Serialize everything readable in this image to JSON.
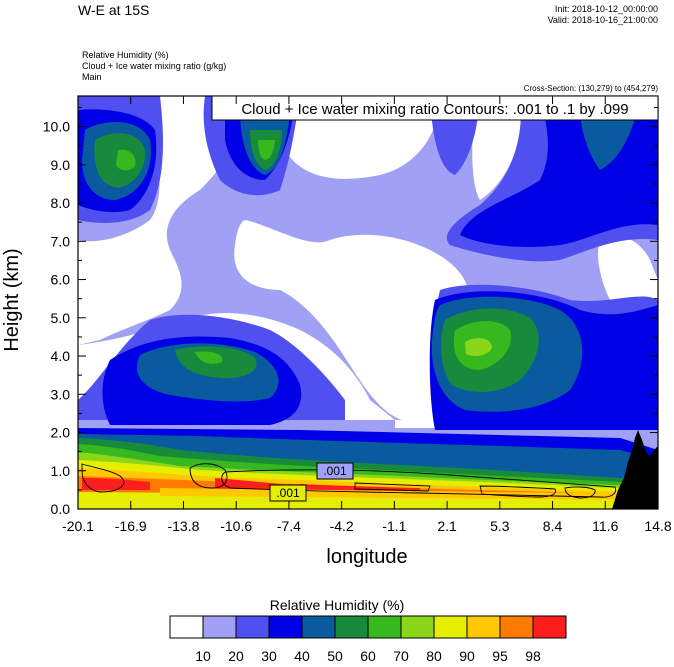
{
  "header": {
    "title": "W-E at 15S",
    "init": "Init: 2018-10-12_00:00:00",
    "valid": "Valid: 2018-10-16_21:00:00",
    "fields": [
      "Relative Humidity   (%)",
      "Cloud + Ice water mixing ratio   (g/kg)",
      "Main"
    ],
    "cross_section": "Cross-Section: (130,279) to (454,279)"
  },
  "chart_data": {
    "type": "heatmap",
    "title": "Cloud + Ice water mixing ratio Contours: .001 to .1 by .099",
    "xlabel": "longitude",
    "ylabel": "Height (km)",
    "x_ticks": [
      "-20.1",
      "-16.9",
      "-13.8",
      "-10.6",
      "-7.4",
      "-4.2",
      "-1.1",
      "2.1",
      "5.3",
      "8.4",
      "11.6",
      "14.8"
    ],
    "y_ticks": [
      "0.0",
      "1.0",
      "2.0",
      "3.0",
      "4.0",
      "5.0",
      "6.0",
      "7.0",
      "8.0",
      "9.0",
      "10.0"
    ],
    "xlim": [
      -20.1,
      14.8
    ],
    "ylim": [
      0,
      10.8
    ],
    "contour_labels": [
      {
        "text": ".001",
        "x": -4.2,
        "y": 1.0
      },
      {
        "text": ".001",
        "x": -7.4,
        "y": 0.4
      }
    ],
    "colorbar": {
      "title": "Relative Humidity  (%)",
      "levels": [
        "10",
        "20",
        "30",
        "40",
        "50",
        "60",
        "70",
        "80",
        "90",
        "95",
        "98"
      ],
      "colors": [
        "#ffffff",
        "#a0a0f4",
        "#5050f0",
        "#0000e6",
        "#0a5aa0",
        "#178a3c",
        "#36b81e",
        "#8cd61a",
        "#e6ee00",
        "#ffc800",
        "#ff7a00",
        "#ff1e1e"
      ]
    }
  }
}
